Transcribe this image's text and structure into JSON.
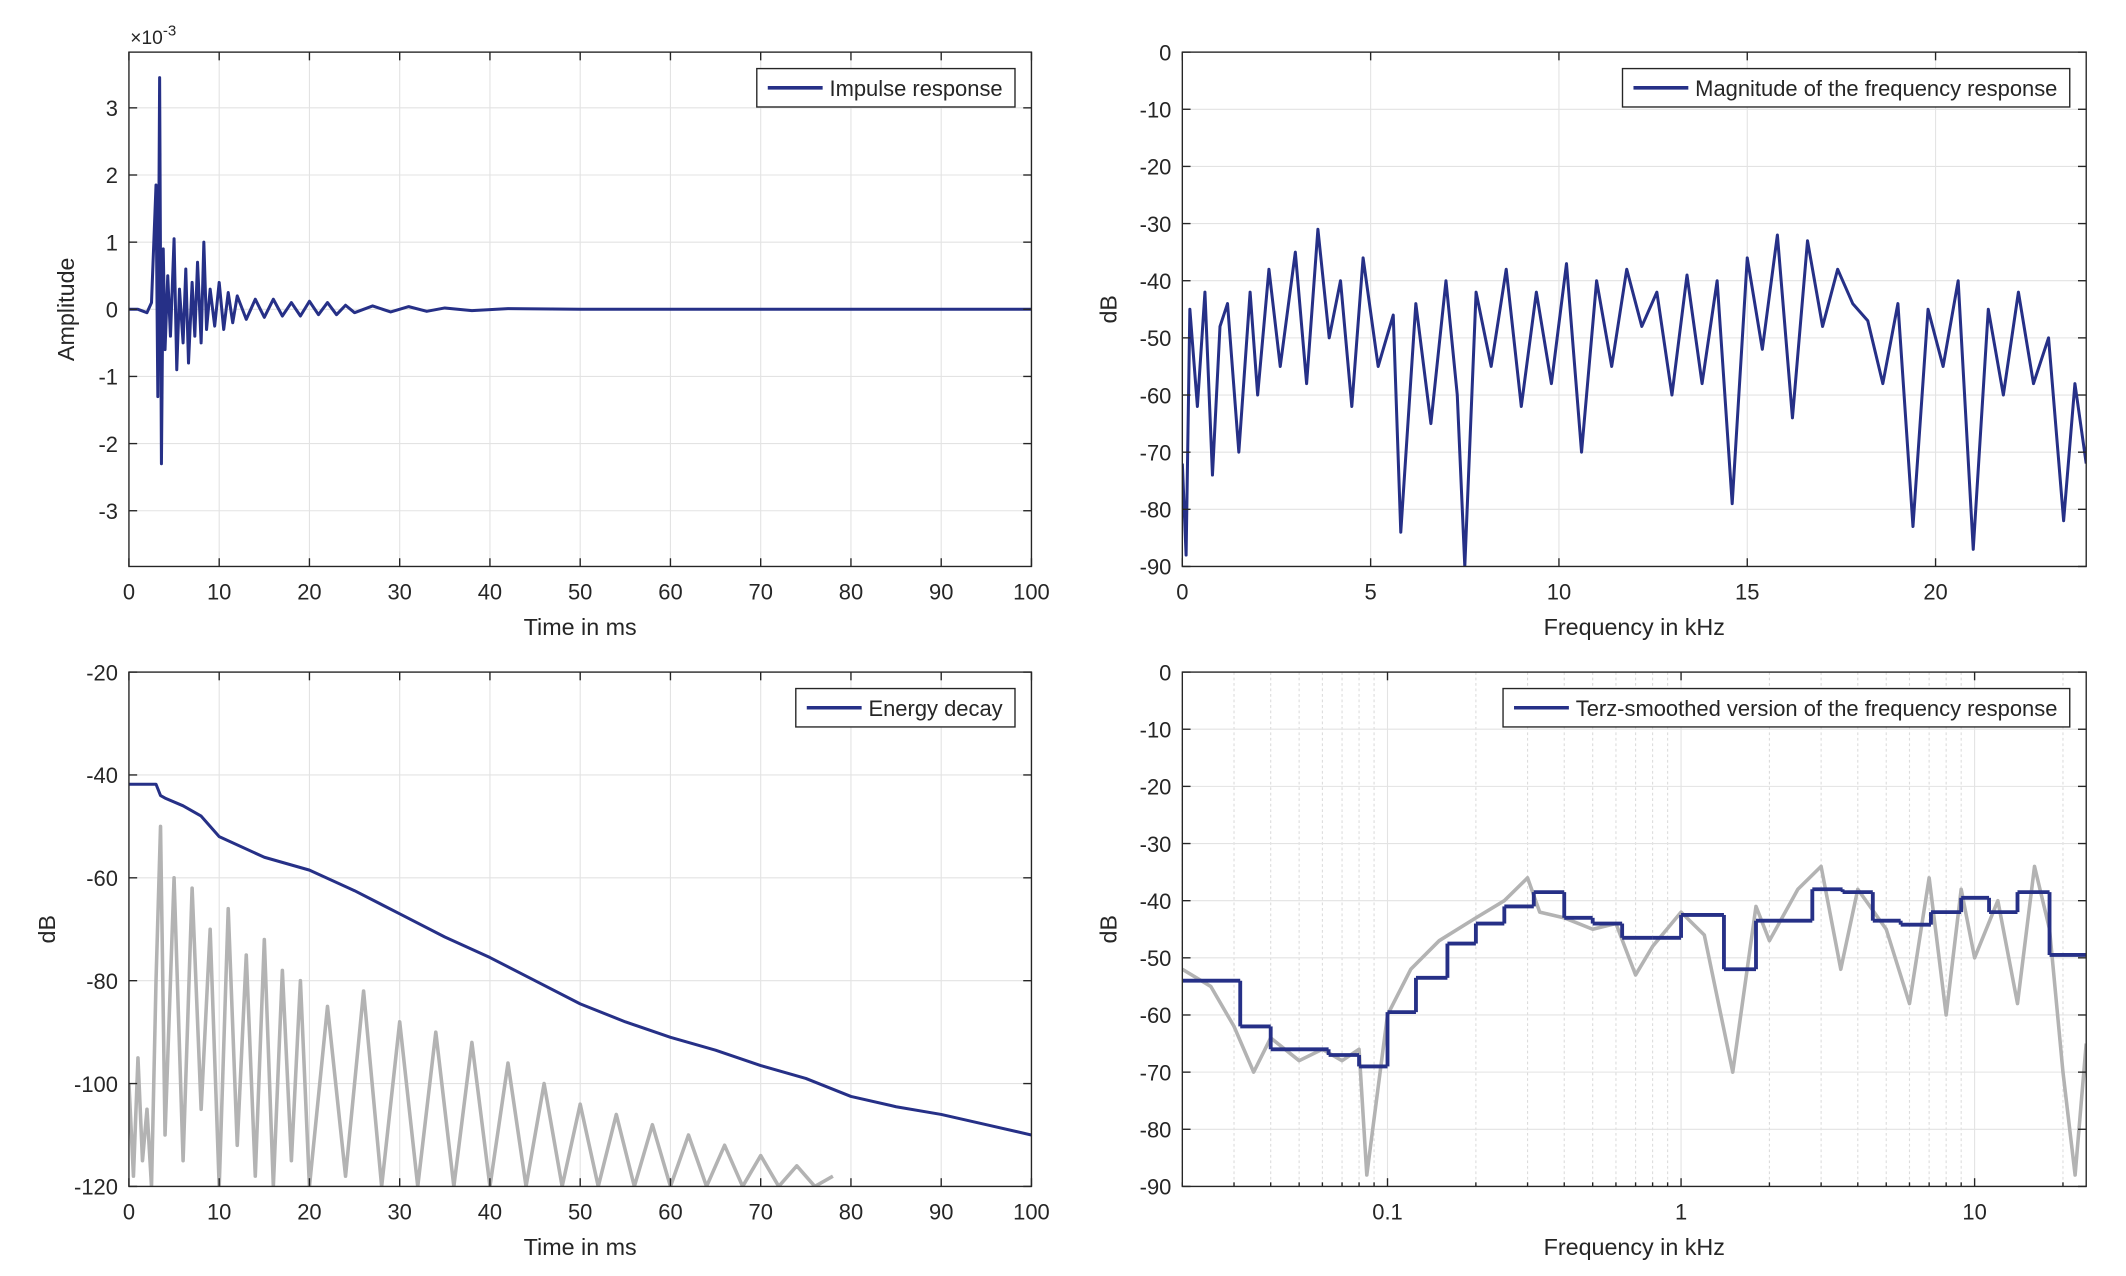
{
  "chart_data": [
    {
      "type": "line",
      "xlabel": "Time in ms",
      "ylabel": "Amplitude",
      "y_multiplier": {
        "base": "×10",
        "exponent": "-3"
      },
      "xlim": [
        0,
        100
      ],
      "ylim": [
        -3.83,
        3.83
      ],
      "xticks": [
        0,
        10,
        20,
        30,
        40,
        50,
        60,
        70,
        80,
        90,
        100
      ],
      "yticks": [
        -3,
        -2,
        -1,
        0,
        1,
        2,
        3
      ],
      "grid": true,
      "legend": "upper right",
      "series": [
        {
          "name": "Impulse response",
          "color": "#263087",
          "x": [
            0,
            1,
            2,
            2.5,
            3,
            3.2,
            3.4,
            3.6,
            3.8,
            4,
            4.3,
            4.6,
            5,
            5.3,
            5.6,
            6,
            6.3,
            6.6,
            7,
            7.3,
            7.6,
            8,
            8.3,
            8.6,
            9,
            9.5,
            10,
            10.5,
            11,
            11.5,
            12,
            13,
            14,
            15,
            16,
            17,
            18,
            19,
            20,
            21,
            22,
            23,
            24,
            25,
            27,
            29,
            31,
            33,
            35,
            38,
            42,
            50,
            60,
            70,
            80,
            90,
            100
          ],
          "values": [
            0,
            0,
            -0.05,
            0.1,
            1.85,
            -1.3,
            3.45,
            -2.3,
            0.9,
            -0.6,
            0.5,
            -0.4,
            1.05,
            -0.9,
            0.3,
            -0.5,
            0.6,
            -0.8,
            0.4,
            -0.4,
            0.7,
            -0.5,
            1.0,
            -0.3,
            0.3,
            -0.25,
            0.4,
            -0.3,
            0.25,
            -0.2,
            0.2,
            -0.15,
            0.15,
            -0.12,
            0.15,
            -0.1,
            0.1,
            -0.1,
            0.12,
            -0.08,
            0.1,
            -0.08,
            0.06,
            -0.05,
            0.05,
            -0.04,
            0.04,
            -0.03,
            0.02,
            -0.02,
            0.01,
            0,
            0,
            0,
            0,
            0,
            0
          ]
        }
      ]
    },
    {
      "type": "line",
      "xlabel": "Frequency in kHz",
      "ylabel": "dB",
      "xlim": [
        0,
        24
      ],
      "ylim": [
        -90,
        0
      ],
      "xticks": [
        0,
        5,
        10,
        15,
        20
      ],
      "yticks": [
        -90,
        -80,
        -70,
        -60,
        -50,
        -40,
        -30,
        -20,
        -10,
        0
      ],
      "grid": true,
      "legend": "upper right",
      "series": [
        {
          "name": "Magnitude of the frequency response",
          "color": "#263087",
          "x": [
            0,
            0.1,
            0.2,
            0.4,
            0.6,
            0.8,
            1.0,
            1.2,
            1.5,
            1.8,
            2.0,
            2.3,
            2.6,
            3.0,
            3.3,
            3.6,
            3.9,
            4.2,
            4.5,
            4.8,
            5.2,
            5.6,
            5.8,
            6.2,
            6.6,
            7.0,
            7.3,
            7.5,
            7.8,
            8.2,
            8.6,
            9.0,
            9.4,
            9.8,
            10.2,
            10.6,
            11.0,
            11.4,
            11.8,
            12.2,
            12.6,
            13.0,
            13.4,
            13.8,
            14.2,
            14.6,
            15.0,
            15.4,
            15.8,
            16.2,
            16.6,
            17.0,
            17.4,
            17.8,
            18.2,
            18.6,
            19.0,
            19.4,
            19.8,
            20.2,
            20.6,
            21.0,
            21.4,
            21.8,
            22.2,
            22.6,
            23.0,
            23.4,
            23.7,
            24
          ],
          "values": [
            -72,
            -88,
            -45,
            -62,
            -42,
            -74,
            -48,
            -44,
            -70,
            -42,
            -60,
            -38,
            -55,
            -35,
            -58,
            -31,
            -50,
            -40,
            -62,
            -36,
            -55,
            -46,
            -84,
            -44,
            -65,
            -40,
            -60,
            -90,
            -42,
            -55,
            -38,
            -62,
            -42,
            -58,
            -37,
            -70,
            -40,
            -55,
            -38,
            -48,
            -42,
            -60,
            -39,
            -58,
            -40,
            -79,
            -36,
            -52,
            -32,
            -64,
            -33,
            -48,
            -38,
            -44,
            -47,
            -58,
            -44,
            -83,
            -45,
            -55,
            -40,
            -87,
            -45,
            -60,
            -42,
            -58,
            -50,
            -82,
            -58,
            -72
          ]
        }
      ]
    },
    {
      "type": "line",
      "xlabel": "Time in ms",
      "ylabel": "dB",
      "xlim": [
        0,
        100
      ],
      "ylim": [
        -120,
        -20
      ],
      "xticks": [
        0,
        10,
        20,
        30,
        40,
        50,
        60,
        70,
        80,
        90,
        100
      ],
      "yticks": [
        -120,
        -100,
        -80,
        -60,
        -40,
        -20
      ],
      "grid": true,
      "legend": "upper right",
      "series": [
        {
          "color": "#b3b3b3",
          "x": [
            0,
            0.5,
            1,
            1.5,
            2,
            2.5,
            3,
            3.5,
            4,
            5,
            6,
            7,
            8,
            9,
            10,
            11,
            12,
            13,
            14,
            15,
            16,
            17,
            18,
            19,
            20,
            22,
            24,
            26,
            28,
            30,
            32,
            34,
            36,
            38,
            40,
            42,
            44,
            46,
            48,
            50,
            52,
            54,
            56,
            58,
            60,
            62,
            64,
            66,
            68,
            70,
            72,
            74,
            76,
            78
          ],
          "values": [
            -100,
            -118,
            -95,
            -115,
            -105,
            -120,
            -80,
            -50,
            -110,
            -60,
            -115,
            -62,
            -105,
            -70,
            -120,
            -66,
            -112,
            -75,
            -118,
            -72,
            -120,
            -78,
            -115,
            -80,
            -120,
            -85,
            -118,
            -82,
            -120,
            -88,
            -120,
            -90,
            -120,
            -92,
            -120,
            -96,
            -120,
            -100,
            -120,
            -104,
            -120,
            -106,
            -120,
            -108,
            -120,
            -110,
            -120,
            -112,
            -120,
            -114,
            -120,
            -116,
            -120,
            -118
          ]
        },
        {
          "name": "Energy decay",
          "color": "#263087",
          "x": [
            0,
            3,
            3.5,
            4,
            6,
            8,
            10,
            15,
            20,
            25,
            30,
            35,
            40,
            45,
            50,
            55,
            60,
            65,
            70,
            75,
            80,
            85,
            90,
            95,
            100
          ],
          "values": [
            -41.8,
            -41.8,
            -44,
            -44.5,
            -46,
            -48,
            -52,
            -56,
            -58.5,
            -62.5,
            -67,
            -71.5,
            -75.5,
            -80,
            -84.5,
            -88,
            -91,
            -93.5,
            -96.5,
            -99,
            -102.5,
            -104.5,
            -106,
            -108,
            -110
          ]
        }
      ]
    },
    {
      "type": "line",
      "xlabel": "Frequency in kHz",
      "ylabel": "dB",
      "xscale": "log",
      "xlim": [
        0.02,
        24
      ],
      "ylim": [
        -90,
        0
      ],
      "xticks": [
        0.1,
        1,
        10
      ],
      "xminorticks": [
        0.02,
        0.03,
        0.04,
        0.05,
        0.06,
        0.07,
        0.08,
        0.09,
        0.2,
        0.3,
        0.4,
        0.5,
        0.6,
        0.7,
        0.8,
        0.9,
        2,
        3,
        4,
        5,
        6,
        7,
        8,
        9,
        20
      ],
      "yticks": [
        -90,
        -80,
        -70,
        -60,
        -50,
        -40,
        -30,
        -20,
        -10,
        0
      ],
      "grid": true,
      "legend": "upper right",
      "series": [
        {
          "color": "#b3b3b3",
          "x": [
            0.02,
            0.025,
            0.03,
            0.035,
            0.04,
            0.05,
            0.06,
            0.07,
            0.08,
            0.085,
            0.1,
            0.12,
            0.15,
            0.2,
            0.25,
            0.3,
            0.33,
            0.4,
            0.5,
            0.6,
            0.7,
            0.8,
            1,
            1.2,
            1.5,
            1.8,
            2,
            2.5,
            3,
            3.5,
            4,
            5,
            6,
            7,
            8,
            9,
            10,
            12,
            14,
            16,
            18,
            20,
            22,
            24
          ],
          "values": [
            -52,
            -55,
            -62,
            -70,
            -64,
            -68,
            -66,
            -68,
            -66,
            -88,
            -60,
            -52,
            -47,
            -43,
            -40,
            -36,
            -42,
            -43,
            -45,
            -44,
            -53,
            -48,
            -42,
            -46,
            -70,
            -41,
            -47,
            -38,
            -34,
            -52,
            -38,
            -45,
            -58,
            -36,
            -60,
            -38,
            -50,
            -40,
            -58,
            -34,
            -45,
            -70,
            -88,
            -65
          ]
        },
        {
          "name": "Terz-smoothed version of the frequency response",
          "color": "#263087",
          "step": "post",
          "x": [
            0.02,
            0.0315,
            0.04,
            0.063,
            0.08,
            0.1,
            0.125,
            0.16,
            0.2,
            0.25,
            0.315,
            0.4,
            0.5,
            0.63,
            0.8,
            1.0,
            1.4,
            1.8,
            2.8,
            3.55,
            4.5,
            5.6,
            7.1,
            9,
            11.2,
            14,
            18,
            24
          ],
          "values": [
            -54,
            -62,
            -66,
            -67,
            -69,
            -59.5,
            -53.5,
            -47.5,
            -44,
            -41,
            -38.5,
            -43,
            -44,
            -46.5,
            -46.5,
            -42.5,
            -52,
            -43.5,
            -38,
            -38.5,
            -43.5,
            -44.2,
            -42,
            -39.5,
            -42,
            -38.5,
            -49.5,
            -49.5
          ]
        }
      ]
    }
  ]
}
